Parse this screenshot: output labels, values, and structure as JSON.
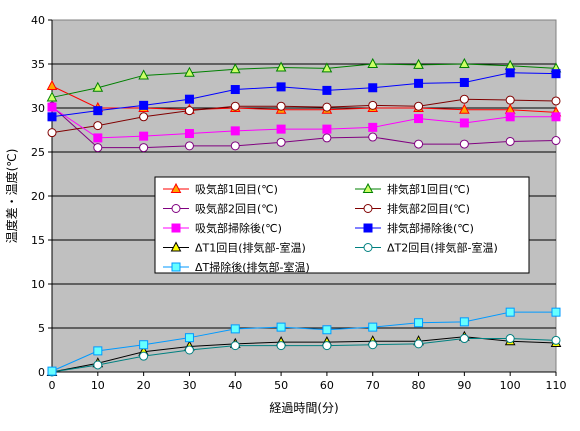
{
  "chart_data": {
    "type": "line",
    "title": "",
    "xlabel": "経過時間(分)",
    "ylabel": "温度差・温度(℃)",
    "xlim": [
      0,
      110
    ],
    "ylim": [
      0,
      40
    ],
    "x_ticks": [
      0,
      10,
      20,
      30,
      40,
      50,
      60,
      70,
      80,
      90,
      100,
      110
    ],
    "y_ticks": [
      0,
      5,
      10,
      15,
      20,
      25,
      30,
      35,
      40
    ],
    "grid": "horizontal",
    "legend_position": "inside-center",
    "x": [
      0,
      10,
      20,
      30,
      40,
      50,
      60,
      70,
      80,
      90,
      100,
      110
    ],
    "series": [
      {
        "name": "吸気部1回目(℃)",
        "color": "#ff0000",
        "marker": "triangle",
        "marker_fill": "#ffa500",
        "values": [
          32.5,
          30.0,
          30.0,
          29.8,
          30.0,
          29.8,
          29.8,
          30.0,
          30.0,
          29.8,
          29.8,
          29.5
        ]
      },
      {
        "name": "排気部1回目(℃)",
        "color": "#008000",
        "marker": "triangle",
        "marker_fill": "#ccff66",
        "values": [
          31.2,
          32.3,
          33.7,
          34.0,
          34.4,
          34.6,
          34.5,
          35.0,
          34.9,
          35.0,
          34.8,
          34.5
        ]
      },
      {
        "name": "吸気部2回目(℃)",
        "color": "#800080",
        "marker": "circle",
        "marker_fill": "#ffffff",
        "values": [
          30.2,
          25.5,
          25.5,
          25.7,
          25.7,
          26.1,
          26.6,
          26.7,
          25.9,
          25.9,
          26.2,
          26.3
        ]
      },
      {
        "name": "排気部2回目(℃)",
        "color": "#800000",
        "marker": "circle",
        "marker_fill": "#ffffff",
        "values": [
          27.2,
          28.0,
          29.0,
          29.7,
          30.2,
          30.2,
          30.1,
          30.3,
          30.2,
          31.0,
          30.9,
          30.8
        ]
      },
      {
        "name": "吸気部掃除後(℃)",
        "color": "#ff00ff",
        "marker": "square",
        "marker_fill": "#ff00ff",
        "values": [
          30.1,
          26.6,
          26.8,
          27.1,
          27.4,
          27.6,
          27.6,
          27.8,
          28.8,
          28.3,
          29.0,
          29.0
        ]
      },
      {
        "name": "排気部掃除後(℃)",
        "color": "#0000ff",
        "marker": "square",
        "marker_fill": "#0000ff",
        "values": [
          29.0,
          29.7,
          30.3,
          31.0,
          32.1,
          32.4,
          32.0,
          32.3,
          32.8,
          32.9,
          34.0,
          33.9
        ]
      },
      {
        "name": "ΔT1回目(排気部-室温)",
        "color": "#000000",
        "marker": "triangle",
        "marker_fill": "#ffff00",
        "values": [
          0.0,
          1.0,
          2.3,
          2.9,
          3.2,
          3.4,
          3.4,
          3.5,
          3.5,
          4.0,
          3.5,
          3.3
        ]
      },
      {
        "name": "ΔT2回目(排気部-室温)",
        "color": "#008080",
        "marker": "circle",
        "marker_fill": "#ffffff",
        "values": [
          0.0,
          0.8,
          1.8,
          2.5,
          3.0,
          3.0,
          3.0,
          3.1,
          3.2,
          3.8,
          3.8,
          3.6
        ]
      },
      {
        "name": "ΔT掃除後(排気部-室温)",
        "color": "#0099ff",
        "marker": "square",
        "marker_fill": "#66ffff",
        "values": [
          0.1,
          2.4,
          3.1,
          3.9,
          4.9,
          5.1,
          4.8,
          5.1,
          5.6,
          5.7,
          6.8,
          6.8
        ]
      }
    ]
  },
  "colors": {
    "plot_background": "#c0c0c0",
    "grid": "#000000",
    "legend_background": "#ffffff"
  }
}
